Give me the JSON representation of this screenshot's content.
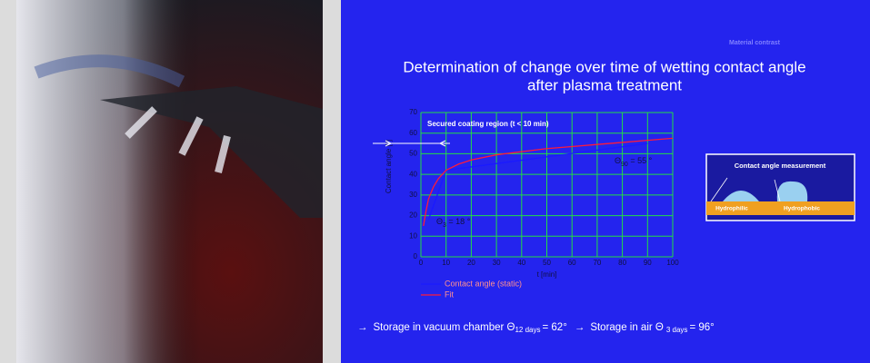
{
  "slide": {
    "tag": "Material contrast",
    "title": [
      "Determination of change over time of wetting contact angle",
      "after plasma treatment"
    ],
    "inset": {
      "title": "Contact angle measurement",
      "left": "Hydrophilic",
      "right": "Hydrophobic"
    },
    "footer": [
      {
        "arrow": "→",
        "text": "Storage in vacuum chamber Θ",
        "sub": "12 days",
        "rest": "= 62°"
      },
      {
        "arrow": "→",
        "text": "Storage in air Θ",
        "sub": "3 days",
        "rest": "= 96°"
      }
    ]
  },
  "chart_data": {
    "type": "line",
    "x_label": "t [min]",
    "y_label": "Contact angle [°]",
    "xlim": [
      0,
      100
    ],
    "ylim": [
      0,
      70
    ],
    "xticks": [
      0,
      10,
      20,
      30,
      40,
      50,
      60,
      70,
      80,
      90,
      100
    ],
    "yticks": [
      0,
      10,
      20,
      30,
      40,
      50,
      60,
      70
    ],
    "grid": true,
    "grid_color": "#22dd44",
    "series": [
      {
        "name": "Contact angle (static)",
        "color": "#1a1aff",
        "x": [
          3,
          10,
          90
        ],
        "values": [
          18,
          42,
          55
        ]
      },
      {
        "name": "Fit",
        "color": "#ff1a3a",
        "x": [
          1,
          2,
          3,
          5,
          7,
          10,
          15,
          20,
          30,
          40,
          50,
          60,
          70,
          80,
          90,
          100
        ],
        "values": [
          15,
          22,
          28,
          34,
          38,
          42,
          45,
          47,
          49.5,
          51,
          52.5,
          53.5,
          54.5,
          55.5,
          56.5,
          57.5
        ]
      }
    ],
    "annotations": [
      {
        "text": "Secured coating region (t < 10 min)"
      },
      {
        "text": "Θ",
        "sub": "90",
        "rest": " = 55 °"
      },
      {
        "text": "Θ",
        "sub": "3",
        "rest": " = 18 °"
      }
    ]
  }
}
